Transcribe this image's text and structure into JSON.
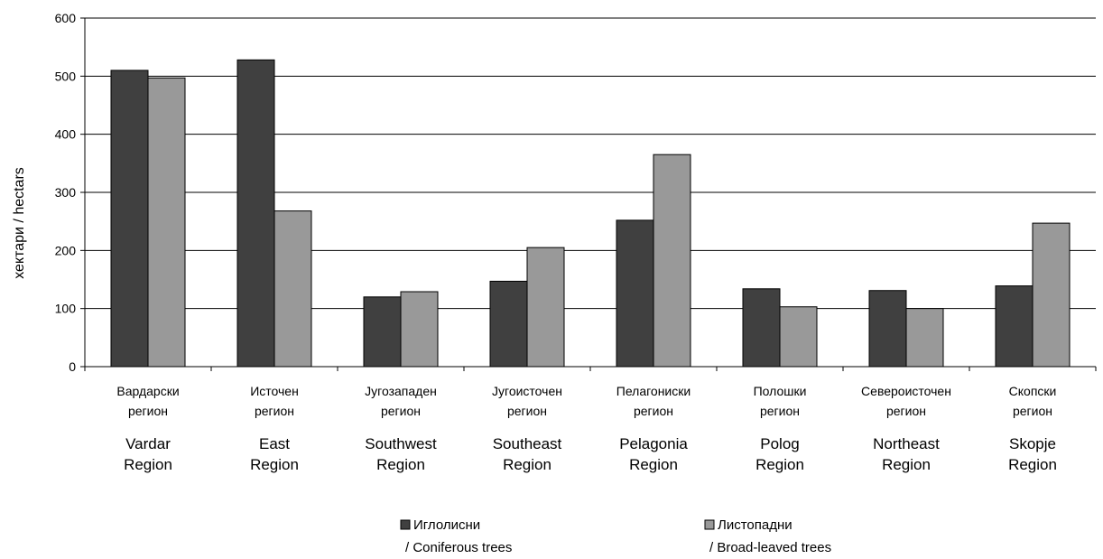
{
  "chart_data": {
    "type": "bar",
    "ylabel": "хектари / hectars",
    "ylim": [
      0,
      600
    ],
    "yticks": [
      0,
      100,
      200,
      300,
      400,
      500,
      600
    ],
    "grid": true,
    "legend_position": "bottom",
    "categories": [
      {
        "cyr": [
          "Вардарски",
          "регион"
        ],
        "lat": [
          "Vardar",
          "Region"
        ]
      },
      {
        "cyr": [
          "Источен",
          "регион"
        ],
        "lat": [
          "East",
          "Region"
        ]
      },
      {
        "cyr": [
          "Југозападен",
          "регион"
        ],
        "lat": [
          "Southwest",
          "Region"
        ]
      },
      {
        "cyr": [
          "Југоисточен",
          "регион"
        ],
        "lat": [
          "Southeast",
          "Region"
        ]
      },
      {
        "cyr": [
          "Пелагониски",
          "регион"
        ],
        "lat": [
          "Pelagonia",
          "Region"
        ]
      },
      {
        "cyr": [
          "Полошки",
          "регион"
        ],
        "lat": [
          "Polog",
          "Region"
        ]
      },
      {
        "cyr": [
          "Североисточен",
          "регион"
        ],
        "lat": [
          "Northeast",
          "Region"
        ]
      },
      {
        "cyr": [
          "Скопски",
          "регион"
        ],
        "lat": [
          "Skopje",
          "Region"
        ]
      }
    ],
    "series": [
      {
        "name": [
          "Иглолисни",
          "/ Coniferous trees"
        ],
        "color": "#404040",
        "values": [
          510,
          528,
          120,
          147,
          252,
          134,
          131,
          139
        ]
      },
      {
        "name": [
          "Листопадни",
          "/ Broad-leaved trees"
        ],
        "color": "#999999",
        "values": [
          497,
          268,
          129,
          205,
          365,
          103,
          100,
          247
        ]
      }
    ]
  }
}
